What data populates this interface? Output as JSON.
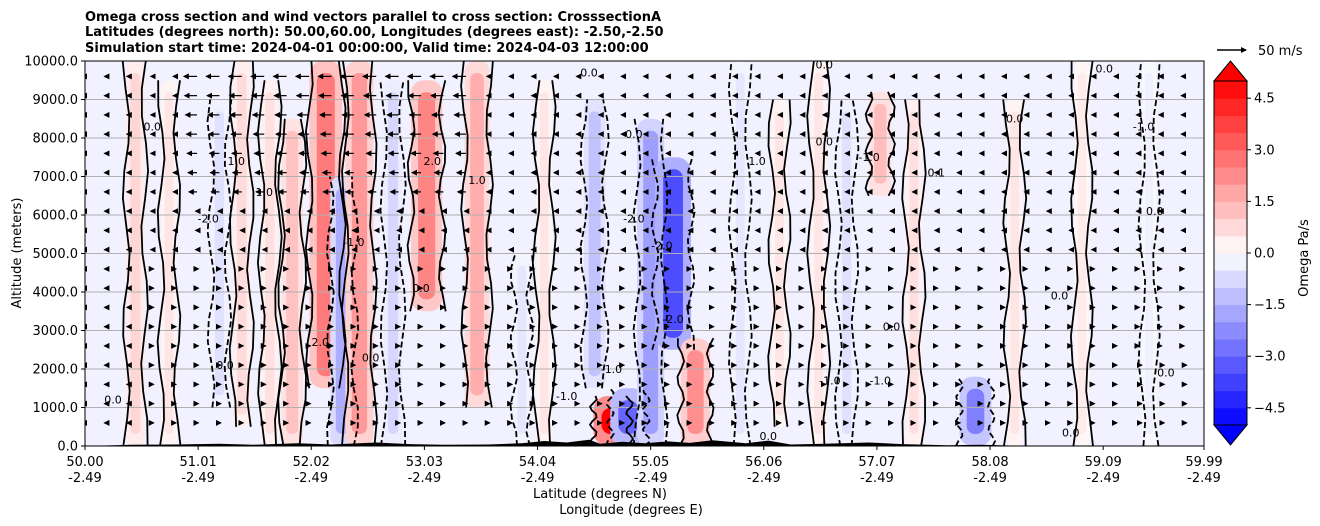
{
  "chart_data": {
    "type": "heatmap",
    "title_lines": [
      "Omega cross section and wind vectors parallel to cross section: CrosssectionA",
      "Latitudes (degrees north): 50.00,60.00, Longitudes (degrees east): -2.50,-2.50",
      "Simulation start time: 2024-04-01 00:00:00, Valid time: 2024-04-03 12:00:00"
    ],
    "ylabel": "Altitude (meters)",
    "xlabel_lat": "Latitude (degrees N)",
    "xlabel_lon": "Longitude (degrees E)",
    "ylim": [
      0,
      10000
    ],
    "xlim": [
      50.0,
      59.99
    ],
    "y_ticks": [
      0,
      1000,
      2000,
      3000,
      4000,
      5000,
      6000,
      7000,
      8000,
      9000,
      10000
    ],
    "y_tick_labels": [
      "0.0",
      "1000.0",
      "2000.0",
      "3000.0",
      "4000.0",
      "5000.0",
      "6000.0",
      "7000.0",
      "8000.0",
      "9000.0",
      "10000.0"
    ],
    "x_ticks": [
      {
        "lat": "50.00",
        "lon": "-2.49"
      },
      {
        "lat": "51.01",
        "lon": "-2.49"
      },
      {
        "lat": "52.02",
        "lon": "-2.49"
      },
      {
        "lat": "53.03",
        "lon": "-2.49"
      },
      {
        "lat": "54.04",
        "lon": "-2.49"
      },
      {
        "lat": "55.05",
        "lon": "-2.49"
      },
      {
        "lat": "56.06",
        "lon": "-2.49"
      },
      {
        "lat": "57.07",
        "lon": "-2.49"
      },
      {
        "lat": "58.08",
        "lon": "-2.49"
      },
      {
        "lat": "59.09",
        "lon": "-2.49"
      },
      {
        "lat": "59.99",
        "lon": "-2.49"
      }
    ],
    "grid": "horizontal",
    "colorbar": {
      "label": "Omega Pa/s",
      "min": -5.0,
      "max": 5.0,
      "step": 0.5,
      "ticks": [
        4.5,
        3.0,
        1.5,
        0.0,
        -1.5,
        -3.0,
        -4.5
      ],
      "tick_labels": [
        "4.5",
        "3.0",
        "1.5",
        "0.0",
        "−1.5",
        "−3.0",
        "−4.5"
      ],
      "extend": "both",
      "cmap": "bwr"
    },
    "vector_key": {
      "label": "50 m/s",
      "speed": 50
    },
    "contour_levels_visible": [
      "0.0",
      "-1.0",
      "1.0",
      "-2.0",
      "2.0"
    ],
    "contour_labels": [
      {
        "lat": 50.25,
        "alt": 1100,
        "text": "0.0"
      },
      {
        "lat": 50.6,
        "alt": 8200,
        "text": "0.0"
      },
      {
        "lat": 51.35,
        "alt": 7300,
        "text": "1.0"
      },
      {
        "lat": 51.1,
        "alt": 5800,
        "text": "-2.0"
      },
      {
        "lat": 51.6,
        "alt": 6500,
        "text": "1.0"
      },
      {
        "lat": 51.25,
        "alt": 2000,
        "text": "0.0"
      },
      {
        "lat": 52.1,
        "alt": 2600,
        "text": "2.0"
      },
      {
        "lat": 52.4,
        "alt": 5200,
        "text": "-1.0"
      },
      {
        "lat": 52.55,
        "alt": 2200,
        "text": "0.0"
      },
      {
        "lat": 53.1,
        "alt": 7300,
        "text": "2.0"
      },
      {
        "lat": 53.5,
        "alt": 6800,
        "text": "1.0"
      },
      {
        "lat": 53.0,
        "alt": 4000,
        "text": "0.0"
      },
      {
        "lat": 54.3,
        "alt": 1200,
        "text": "-1.0"
      },
      {
        "lat": 54.7,
        "alt": 1900,
        "text": "-1.0"
      },
      {
        "lat": 54.9,
        "alt": 5800,
        "text": "-2.0"
      },
      {
        "lat": 55.15,
        "alt": 5100,
        "text": "-2.0"
      },
      {
        "lat": 55.25,
        "alt": 3200,
        "text": "-2.0"
      },
      {
        "lat": 54.9,
        "alt": 8000,
        "text": "0.0"
      },
      {
        "lat": 56.0,
        "alt": 7300,
        "text": "1.0"
      },
      {
        "lat": 56.6,
        "alt": 7800,
        "text": "0.0"
      },
      {
        "lat": 57.0,
        "alt": 7400,
        "text": "-1.0"
      },
      {
        "lat": 56.65,
        "alt": 1600,
        "text": "-1.0"
      },
      {
        "lat": 57.1,
        "alt": 1600,
        "text": "-1.0"
      },
      {
        "lat": 57.2,
        "alt": 3000,
        "text": "0.0"
      },
      {
        "lat": 57.6,
        "alt": 7000,
        "text": "0.1"
      },
      {
        "lat": 58.3,
        "alt": 8400,
        "text": "0.0"
      },
      {
        "lat": 59.1,
        "alt": 9700,
        "text": "0.0"
      },
      {
        "lat": 59.45,
        "alt": 8200,
        "text": "-1.0"
      },
      {
        "lat": 58.7,
        "alt": 3800,
        "text": "0.0"
      },
      {
        "lat": 59.65,
        "alt": 1800,
        "text": "0.0"
      },
      {
        "lat": 59.55,
        "alt": 6000,
        "text": "0.0"
      },
      {
        "lat": 58.8,
        "alt": 250,
        "text": "0.0"
      },
      {
        "lat": 56.1,
        "alt": 150,
        "text": "0.0"
      },
      {
        "lat": 56.6,
        "alt": 9800,
        "text": "0.0"
      },
      {
        "lat": 54.5,
        "alt": 9600,
        "text": "0.0"
      }
    ],
    "features": [
      {
        "lat": 50.45,
        "alt_min": 0,
        "alt_max": 10000,
        "omega": 0.8
      },
      {
        "lat": 50.75,
        "alt_min": 0,
        "alt_max": 9500,
        "omega": 0.5
      },
      {
        "lat": 51.2,
        "alt_min": 1000,
        "alt_max": 9000,
        "omega": -0.6
      },
      {
        "lat": 51.4,
        "alt_min": 500,
        "alt_max": 10000,
        "omega": 0.7
      },
      {
        "lat": 51.65,
        "alt_min": 0,
        "alt_max": 9500,
        "omega": 0.6
      },
      {
        "lat": 51.85,
        "alt_min": 0,
        "alt_max": 8500,
        "omega": 1.2
      },
      {
        "lat": 52.15,
        "alt_min": 1500,
        "alt_max": 10000,
        "omega": 2.6
      },
      {
        "lat": 52.3,
        "alt_min": 0,
        "alt_max": 7000,
        "omega": -1.6
      },
      {
        "lat": 52.45,
        "alt_min": 0,
        "alt_max": 10000,
        "omega": 2.0
      },
      {
        "lat": 52.75,
        "alt_min": 0,
        "alt_max": 9500,
        "omega": -0.8
      },
      {
        "lat": 53.05,
        "alt_min": 3500,
        "alt_max": 9500,
        "omega": 2.4
      },
      {
        "lat": 53.5,
        "alt_min": 1000,
        "alt_max": 10000,
        "omega": 1.6
      },
      {
        "lat": 53.9,
        "alt_min": 0,
        "alt_max": 5000,
        "omega": -0.5
      },
      {
        "lat": 54.1,
        "alt_min": 0,
        "alt_max": 9500,
        "omega": 0.5
      },
      {
        "lat": 54.55,
        "alt_min": 1500,
        "alt_max": 9000,
        "omega": -1.2
      },
      {
        "lat": 54.7,
        "alt_min": 0,
        "alt_max": 1300,
        "omega": 5.0
      },
      {
        "lat": 54.85,
        "alt_min": 0,
        "alt_max": 1500,
        "omega": -3.0
      },
      {
        "lat": 55.05,
        "alt_min": 0,
        "alt_max": 8500,
        "omega": -1.9
      },
      {
        "lat": 55.25,
        "alt_min": 2500,
        "alt_max": 7500,
        "omega": -3.5
      },
      {
        "lat": 55.45,
        "alt_min": 0,
        "alt_max": 2800,
        "omega": 2.2
      },
      {
        "lat": 55.85,
        "alt_min": 0,
        "alt_max": 10000,
        "omega": -0.5
      },
      {
        "lat": 56.2,
        "alt_min": 500,
        "alt_max": 9000,
        "omega": 0.5
      },
      {
        "lat": 56.55,
        "alt_min": 0,
        "alt_max": 10000,
        "omega": 0.5
      },
      {
        "lat": 56.8,
        "alt_min": 0,
        "alt_max": 9000,
        "omega": -0.6
      },
      {
        "lat": 57.1,
        "alt_min": 6500,
        "alt_max": 9200,
        "omega": 1.3
      },
      {
        "lat": 57.4,
        "alt_min": 0,
        "alt_max": 9000,
        "omega": 0.6
      },
      {
        "lat": 57.95,
        "alt_min": 0,
        "alt_max": 1800,
        "omega": -2.5
      },
      {
        "lat": 58.3,
        "alt_min": 0,
        "alt_max": 9000,
        "omega": 0.5
      },
      {
        "lat": 58.9,
        "alt_min": 0,
        "alt_max": 10000,
        "omega": 0.4
      },
      {
        "lat": 59.5,
        "alt_min": 0,
        "alt_max": 10000,
        "omega": -0.3
      }
    ]
  }
}
